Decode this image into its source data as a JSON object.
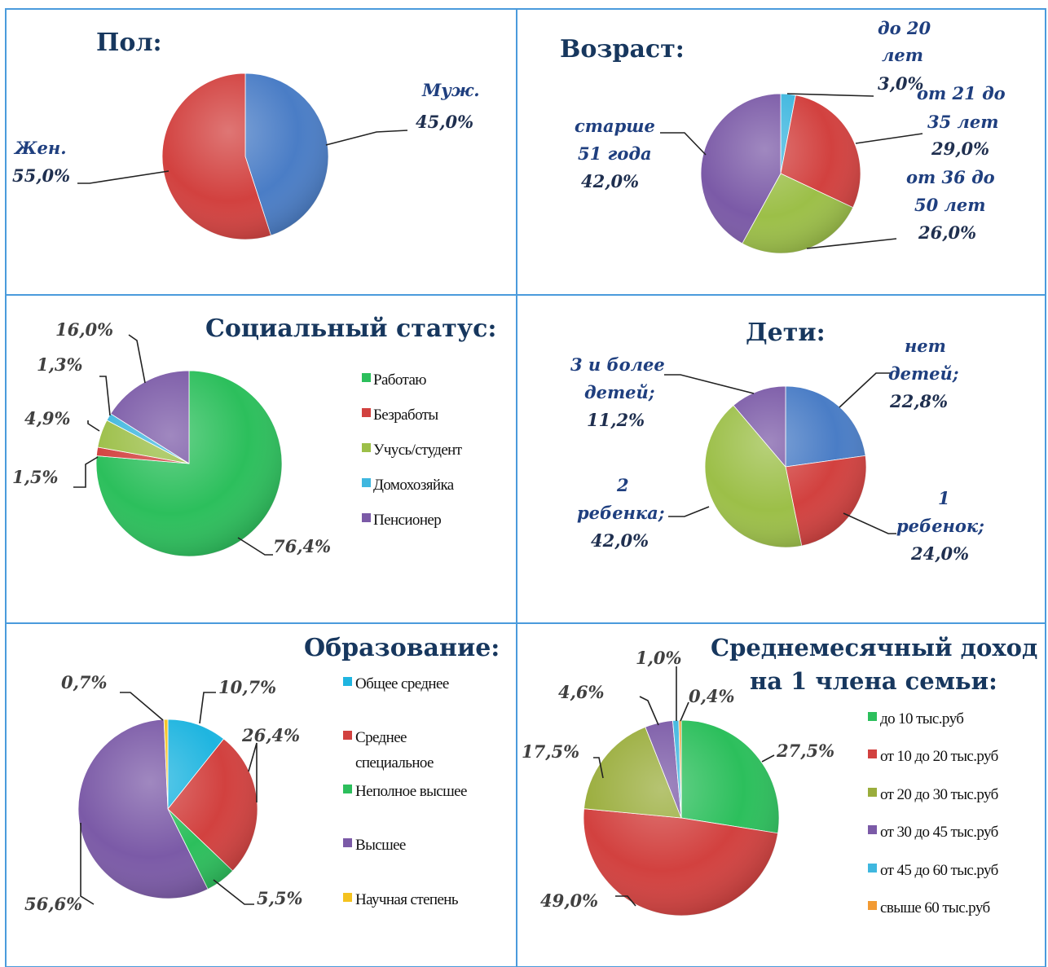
{
  "colors": {
    "blue": "#4a7dc6",
    "red": "#d2413f",
    "green": "#9cbf48",
    "purple": "#7b5aa7",
    "cyan": "#3fb7df",
    "orange": "#f29a33",
    "yellow": "#f4c21f",
    "emerald": "#2cbf5c",
    "olive": "#9aad3c",
    "grid": "#4a9bdc"
  },
  "chart_data": [
    {
      "id": "gender",
      "type": "pie",
      "title": "Пол:",
      "slices": [
        {
          "label": "Муж.",
          "value": 45.0,
          "text": "45,0%",
          "color": "#4a7dc6"
        },
        {
          "label": "Жен.",
          "value": 55.0,
          "text": "55,0%",
          "color": "#d2413f"
        }
      ]
    },
    {
      "id": "age",
      "type": "pie",
      "title": "Возраст:",
      "slices": [
        {
          "label_lines": [
            "до 20",
            "лет"
          ],
          "value": 3.0,
          "text": "3,0%",
          "color": "#3fb7df"
        },
        {
          "label_lines": [
            "от 21 до",
            "35 лет"
          ],
          "value": 29.0,
          "text": "29,0%",
          "color": "#d2413f"
        },
        {
          "label_lines": [
            "от 36 до",
            "50 лет"
          ],
          "value": 26.0,
          "text": "26,0%",
          "color": "#9cbf48"
        },
        {
          "label_lines": [
            "старше",
            "51 года"
          ],
          "value": 42.0,
          "text": "42,0%",
          "color": "#7b5aa7"
        }
      ]
    },
    {
      "id": "social",
      "type": "pie",
      "title": "Социальный статус:",
      "slices": [
        {
          "label": "Работаю",
          "value": 76.4,
          "text": "76,4%",
          "color": "#2cbf5c"
        },
        {
          "label": "Безработы",
          "value": 1.5,
          "text": "1,5%",
          "color": "#d2413f"
        },
        {
          "label": "Учусь/студент",
          "value": 4.9,
          "text": "4,9%",
          "color": "#9cbf48"
        },
        {
          "label": "Домохозяйка",
          "value": 1.3,
          "text": "1,3%",
          "color": "#3fb7df"
        },
        {
          "label": "Пенсионер",
          "value": 16.0,
          "text": "16,0%",
          "color": "#7b5aa7"
        }
      ]
    },
    {
      "id": "children",
      "type": "pie",
      "title": "Дети:",
      "slices": [
        {
          "label_lines": [
            "нет",
            "детей;"
          ],
          "value": 22.8,
          "text": "22,8%",
          "color": "#4a7dc6"
        },
        {
          "label_lines": [
            "1",
            "ребенок;"
          ],
          "value": 24.0,
          "text": "24,0%",
          "color": "#d2413f"
        },
        {
          "label_lines": [
            "2",
            "ребенка;"
          ],
          "value": 42.0,
          "text": "42,0%",
          "color": "#9cbf48"
        },
        {
          "label_lines": [
            "3 и более",
            "детей;"
          ],
          "value": 11.2,
          "text": "11,2%",
          "color": "#7b5aa7"
        }
      ]
    },
    {
      "id": "education",
      "type": "pie",
      "title": "Образование:",
      "slices": [
        {
          "label": "Общее среднее",
          "value": 10.7,
          "text": "10,7%",
          "color": "#1fb5e0"
        },
        {
          "label_lines": [
            "Среднее",
            "специальное"
          ],
          "value": 26.4,
          "text": "26,4%",
          "color": "#d2413f"
        },
        {
          "label": "Неполное высшее",
          "value": 5.5,
          "text": "5,5%",
          "color": "#2cbf5c"
        },
        {
          "label": "Высшее",
          "value": 56.6,
          "text": "56,6%",
          "color": "#7b5aa7"
        },
        {
          "label": "Научная степень",
          "value": 0.7,
          "text": "0,7%",
          "color": "#f4c21f"
        }
      ]
    },
    {
      "id": "income",
      "type": "pie",
      "title_lines": [
        "Среднемесячный доход",
        "на 1 члена семьи:"
      ],
      "slices": [
        {
          "label": "до 10 тыс.руб",
          "value": 27.5,
          "text": "27,5%",
          "color": "#2cbf5c"
        },
        {
          "label": "от 10 до 20 тыс.руб",
          "value": 49.0,
          "text": "49,0%",
          "color": "#d2413f"
        },
        {
          "label": "от 20 до 30 тыс.руб",
          "value": 17.5,
          "text": "17,5%",
          "color": "#9aad3c"
        },
        {
          "label": "от 30 до 45 тыс.руб",
          "value": 4.6,
          "text": "4,6%",
          "color": "#7b5aa7"
        },
        {
          "label": "от 45 до 60 тыс.руб",
          "value": 1.0,
          "text": "1,0%",
          "color": "#3fb7df"
        },
        {
          "label": "свыше 60 тыс.руб",
          "value": 0.4,
          "text": "0,4%",
          "color": "#f29a33"
        }
      ]
    }
  ]
}
